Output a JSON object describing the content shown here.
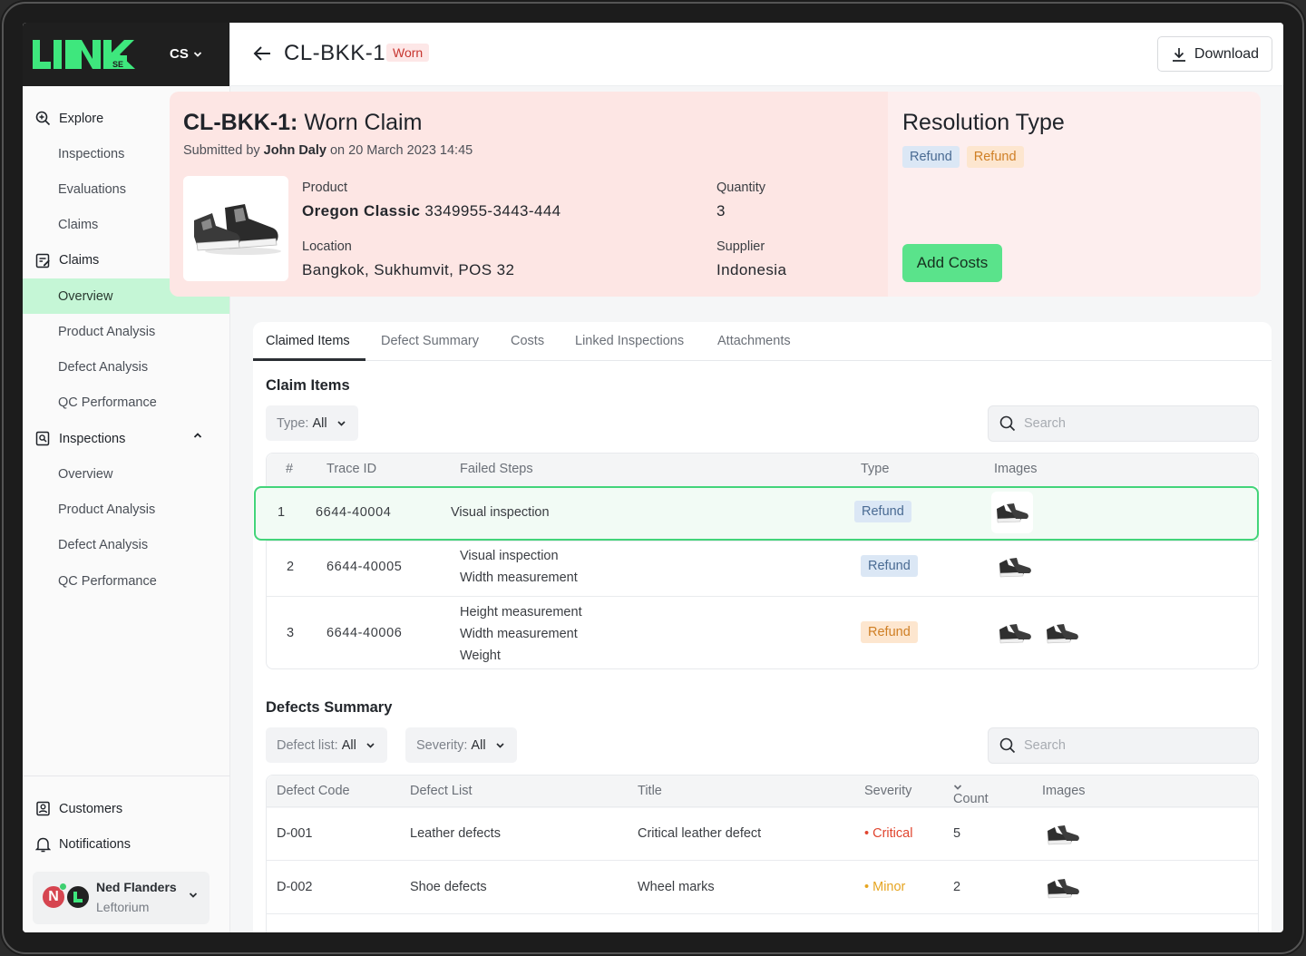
{
  "brand": {
    "logo_text": "LINK",
    "logo_sub": "SE",
    "org_switch": "CS"
  },
  "sidebar": {
    "explore": "Explore",
    "explore_items": [
      "Inspections",
      "Evaluations",
      "Claims"
    ],
    "claims": "Claims",
    "claims_items": [
      "Overview",
      "Product Analysis",
      "Defect Analysis",
      "QC Performance"
    ],
    "inspections": "Inspections",
    "inspections_items": [
      "Overview",
      "Product Analysis",
      "Defect Analysis",
      "QC Performance"
    ],
    "customers": "Customers",
    "notifications": "Notifications",
    "user": {
      "name": "Ned Flanders",
      "org": "Leftorium",
      "initial": "N"
    }
  },
  "header": {
    "title": "CL-BKK-1",
    "badge": "Worn",
    "download": "Download"
  },
  "claim": {
    "title_code": "CL-BKK-1:",
    "title_rest": " Worn Claim",
    "submitted_prefix": "Submitted by ",
    "submitted_by": "John Daly",
    "submitted_suffix": " on 20 March 2023 14:45",
    "product_label": "Product",
    "product_name": "Oregon Classic",
    "product_code": " 3349955-3443-444",
    "quantity_label": "Quantity",
    "quantity": "3",
    "location_label": "Location",
    "location": "Bangkok, Sukhumvit, POS 32",
    "supplier_label": "Supplier",
    "supplier": "Indonesia"
  },
  "resolution": {
    "title": "Resolution Type",
    "chips": [
      "Refund",
      "Refund"
    ],
    "add_costs": "Add Costs"
  },
  "tabs": [
    "Claimed Items",
    "Defect Summary",
    "Costs",
    "Linked Inspections",
    "Attachments"
  ],
  "claim_items": {
    "title": "Claim Items",
    "filter_label": "Type: ",
    "filter_value": "All",
    "search_placeholder": "Search",
    "headers": [
      "#",
      "Trace ID",
      "Failed Steps",
      "Type",
      "Images"
    ],
    "rows": [
      {
        "n": "1",
        "trace": "6644-40004",
        "steps": [
          "Visual inspection"
        ],
        "type": "Refund"
      },
      {
        "n": "2",
        "trace": "6644-40005",
        "steps": [
          "Visual inspection",
          "Width measurement"
        ],
        "type": "Refund"
      },
      {
        "n": "3",
        "trace": "6644-40006",
        "steps": [
          "Height measurement",
          "Width measurement",
          "Weight"
        ],
        "type": "Refund"
      }
    ]
  },
  "defects": {
    "title": "Defects Summary",
    "filter1_label": "Defect list: ",
    "filter1_value": "All",
    "filter2_label": "Severity: ",
    "filter2_value": "All",
    "search_placeholder": "Search",
    "headers": [
      "Defect Code",
      "Defect List",
      "Title",
      "Severity",
      "Count",
      "Images"
    ],
    "rows": [
      {
        "code": "D-001",
        "list": "Leather defects",
        "title": "Critical leather defect",
        "severity": "Critical",
        "count": "5"
      },
      {
        "code": "D-002",
        "list": "Shoe defects",
        "title": "Wheel marks",
        "severity": "Minor",
        "count": "2"
      }
    ]
  },
  "colors": {
    "accent_green": "#5ae38b",
    "highlight_green": "#43d47a",
    "claim_bg": "#fde6e4",
    "critical": "#e0452f",
    "minor": "#e6a521"
  }
}
